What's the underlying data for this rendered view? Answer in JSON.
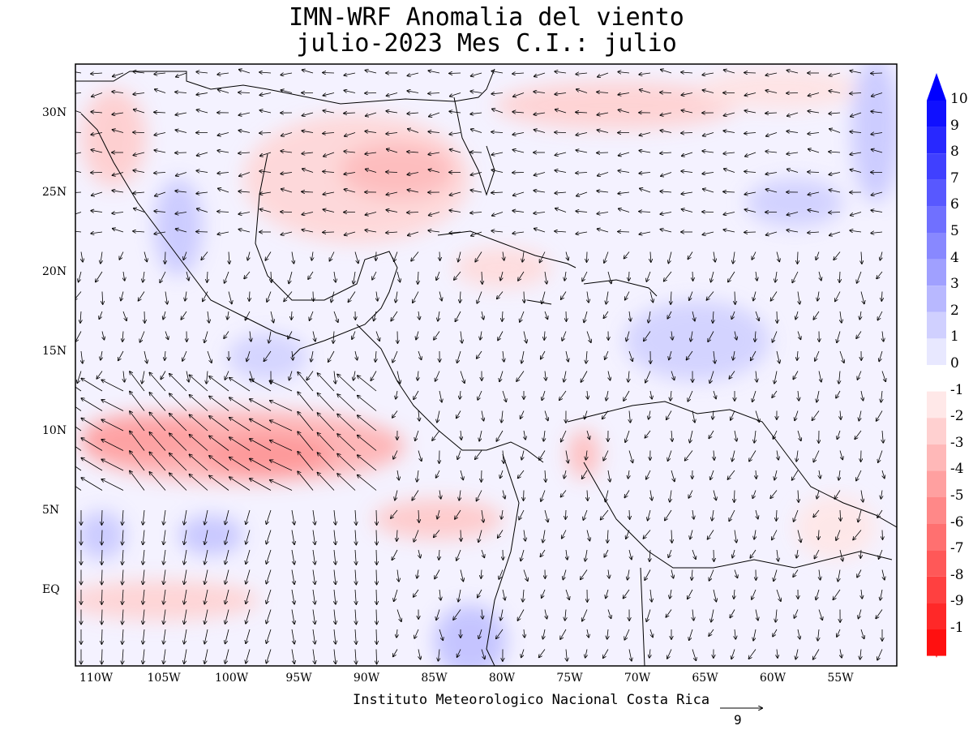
{
  "title_line1": "IMN-WRF Anomalia del viento",
  "title_line2": "julio-2023 Mes C.I.: julio",
  "credit": "Instituto Meteorologico Nacional Costa Rica",
  "reference_vector_label": "9",
  "lat_labels": [
    "30N",
    "25N",
    "20N",
    "15N",
    "10N",
    "5N",
    "EQ"
  ],
  "lon_labels": [
    "110W",
    "105W",
    "100W",
    "95W",
    "90W",
    "85W",
    "80W",
    "75W",
    "70W",
    "65W",
    "60W",
    "55W"
  ],
  "colorbar_labels": [
    "10",
    "9",
    "8",
    "7",
    "6",
    "5",
    "4",
    "3",
    "2",
    "1",
    "0",
    "-1",
    "-2",
    "-3",
    "-4",
    "-5",
    "-6",
    "-7",
    "-8",
    "-9",
    "-1"
  ],
  "colorbar_colors": [
    "#1010ff",
    "#2828ff",
    "#4040ff",
    "#5858ff",
    "#7070ff",
    "#8888ff",
    "#a0a0ff",
    "#b8b8ff",
    "#d0d0ff",
    "#e8e8ff",
    "#ffffff",
    "#ffe8e8",
    "#ffd0d0",
    "#ffb8b8",
    "#ffa0a0",
    "#ff8888",
    "#ff7070",
    "#ff5858",
    "#ff4040",
    "#ff2828",
    "#ff1010"
  ],
  "icons": [
    "wind-vector-arrows",
    "coastline-outline",
    "colorbar-arrow-up",
    "colorbar-arrow-down",
    "reference-arrow"
  ]
}
